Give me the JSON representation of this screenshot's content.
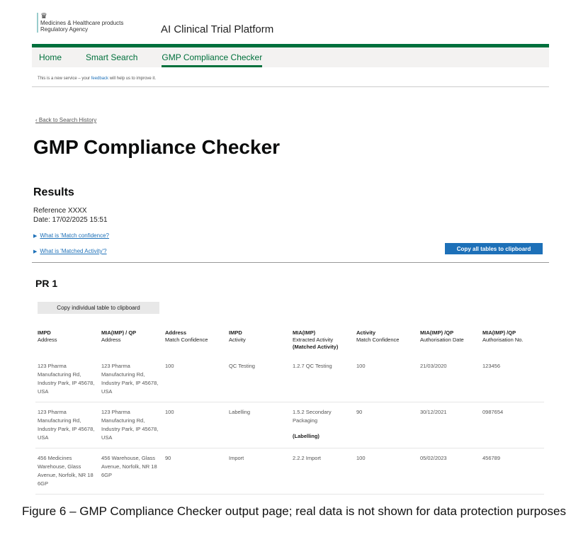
{
  "header": {
    "agency_line1": "Medicines & Healthcare products",
    "agency_line2": "Regulatory Agency",
    "app_title": "AI Clinical Trial Platform"
  },
  "nav": {
    "items": [
      {
        "label": "Home"
      },
      {
        "label": "Smart Search"
      },
      {
        "label": "GMP Compliance Checker",
        "active": true
      }
    ]
  },
  "banner": {
    "prefix": "This is a new service – your ",
    "link": "feedback",
    "suffix": " will help us to improve it."
  },
  "back_link": "Back to Search History",
  "page_title": "GMP Compliance Checker",
  "results": {
    "heading": "Results",
    "reference": "Reference XXXX",
    "date": "Date: 17/02/2025 15:51",
    "details": [
      "What is 'Match confidence?",
      "What is 'Matched Activity'?"
    ],
    "copy_all": "Copy all tables to clipboard"
  },
  "section": {
    "title": "PR 1",
    "copy_one": "Copy individual table to clipboard"
  },
  "table": {
    "headers": [
      [
        "IMPD",
        "Address"
      ],
      [
        "MIA(IMP) / QP",
        "Address"
      ],
      [
        "Address",
        "Match Confidence"
      ],
      [
        "IMPD",
        "Activity"
      ],
      [
        "MIA(IMP)",
        "Extracted Activity",
        "(Matched Activity)"
      ],
      [
        "Activity",
        "Match Confidence"
      ],
      [
        "MIA(IMP) /QP",
        "Authorisation Date"
      ],
      [
        "MIA(IMP) /QP",
        "Authorisation No."
      ]
    ],
    "rows": [
      {
        "impd_address": "123 Pharma Manufacturing Rd, Industry Park, IP 45678, USA",
        "mia_address": "123 Pharma Manufacturing Rd, Industry Park, IP 45678, USA",
        "address_conf": "100",
        "impd_activity": "QC Testing",
        "extracted": "1.2.7 QC Testing",
        "matched": "",
        "activity_conf": "100",
        "auth_date": "21/03/2020",
        "auth_no": "123456"
      },
      {
        "impd_address": "123 Pharma Manufacturing Rd, Industry Park, IP 45678, USA",
        "mia_address": "123 Pharma Manufacturing Rd, Industry Park, IP 45678, USA",
        "address_conf": "100",
        "impd_activity": "Labelling",
        "extracted": "1.5.2 Secondary Packaging",
        "matched": "(Labelling)",
        "activity_conf": "90",
        "auth_date": "30/12/2021",
        "auth_no": "0987654"
      },
      {
        "impd_address": "456 Medicines Warehouse, Glass Avenue, Norfolk, NR 18 6GP",
        "mia_address": "456  Warehouse, Glass Avenue, Norfolk, NR 18 6GP",
        "address_conf": "90",
        "impd_activity": "Import",
        "extracted": "2.2.2 Import",
        "matched": "",
        "activity_conf": "100",
        "auth_date": "05/02/2023",
        "auth_no": "456789"
      }
    ]
  },
  "caption": "Figure 6 – GMP Compliance Checker output page; real data is not shown for data protection purposes"
}
